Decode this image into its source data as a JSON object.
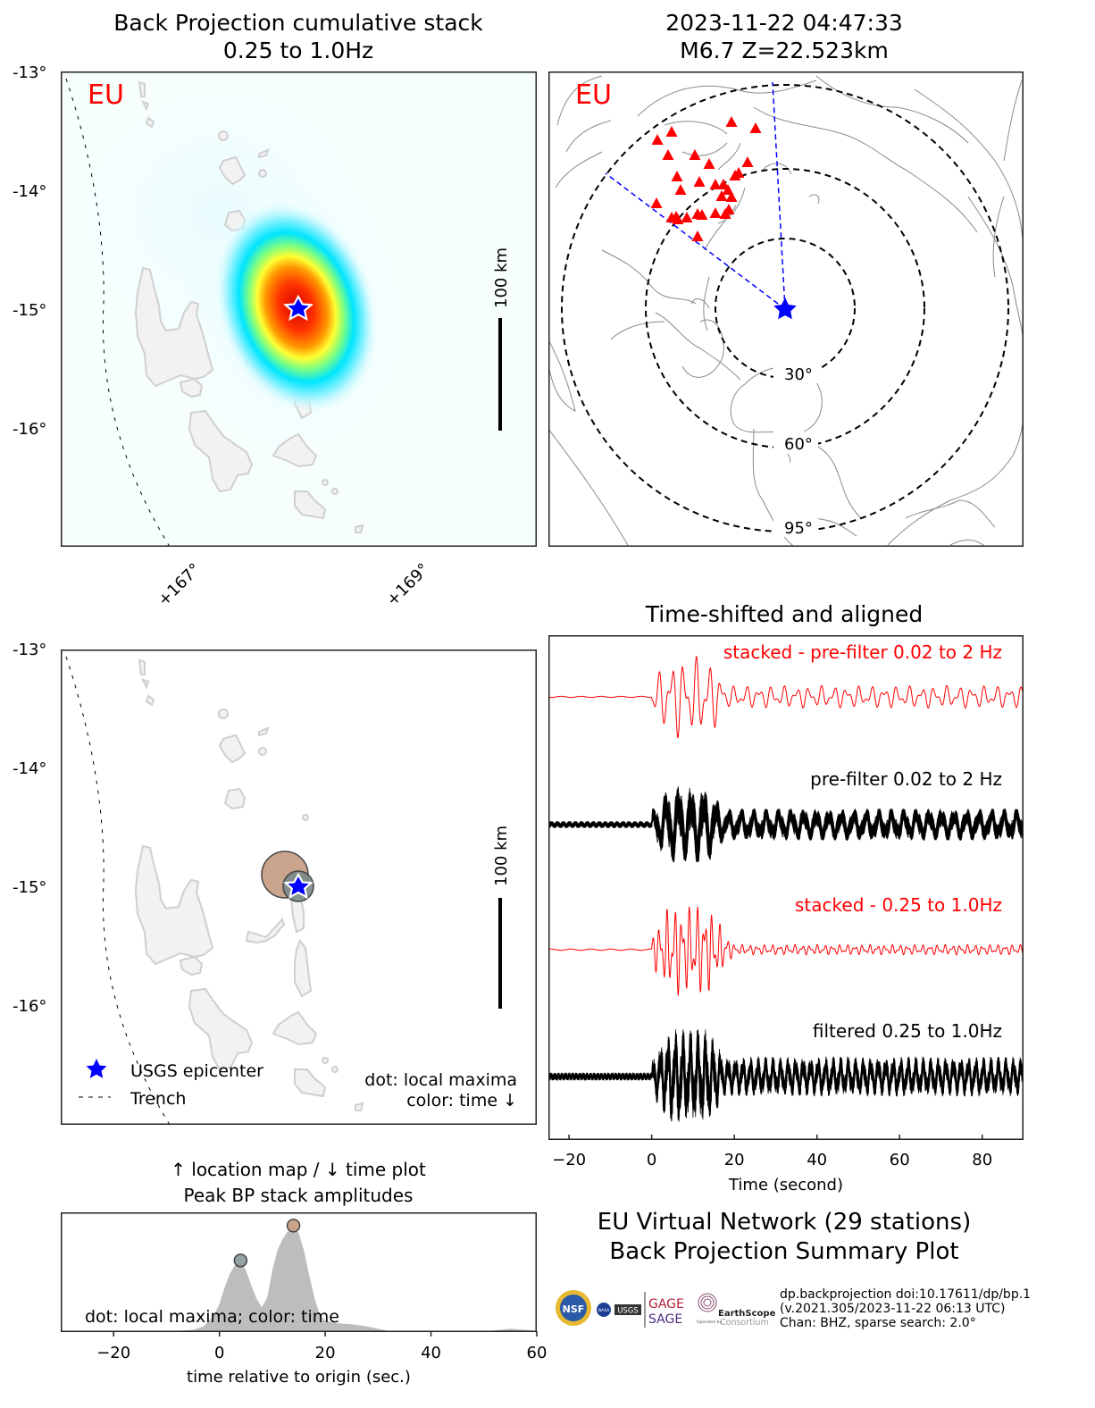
{
  "summary": {
    "title_line1": "EU Virtual Network (29 stations)",
    "title_line2": "Back Projection Summary Plot",
    "meta_line1": "dp.backprojection doi:10.17611/dp/bp.1",
    "meta_line2": "(v.2021.305/2023-11-22 06:13 UTC)",
    "meta_line3": "Chan: BHZ, sparse search: 2.0°",
    "logos": [
      "NSF",
      "NASA",
      "USGS",
      "GAGE",
      "SAGE",
      "EarthScope Consortium"
    ],
    "logo_gage": "GAGE",
    "logo_sage": "SAGE",
    "logo_earthscope": "EarthScope",
    "logo_consortium": "Consortium",
    "logo_operated": "Operated by",
    "logo_usgs": "USGS",
    "logo_nasa": "NASA",
    "logo_nsf": "NSF"
  },
  "colors": {
    "network_label": "#ff0000",
    "epicenter": "#0000ff",
    "station": "#ff0000",
    "stack_trace": "#ff0000",
    "trace": "#000000",
    "island_fill": "#f2f2f2",
    "island_edge": "#d0d0d0",
    "early_maximum": "#8a9a9a",
    "late_maximum": "#c49a80",
    "peak_fill": "#bdbdbd"
  },
  "chart_data": [
    {
      "id": "bp-cumulative-stack",
      "type": "heatmap",
      "title_line1": "Back Projection cumulative stack",
      "title_line2": "0.25 to 1.0Hz",
      "network_label": "EU",
      "y_ticks": [
        "-13°",
        "-14°",
        "-15°",
        "-16°"
      ],
      "y_tick_values": [
        -13,
        -14,
        -15,
        -16
      ],
      "x_ticks": [
        "+167°",
        "+169°"
      ],
      "x_tick_values": [
        167,
        169
      ],
      "xlim": [
        165.9,
        170.05
      ],
      "ylim": [
        -16.95,
        -13.0
      ],
      "scale_bar_label": "100 km",
      "scale_bar_km": 100,
      "epicenter": {
        "lon": 168.0,
        "lat": -15.0
      },
      "peak": {
        "lon": 167.99,
        "lat": -14.97,
        "major_axis_deg": 0.6,
        "minor_axis_deg": 0.4,
        "orientation": "NNW-SSE"
      },
      "colormap": "jet (white at low)",
      "trench_label": "Trench"
    },
    {
      "id": "station-map",
      "type": "scatter",
      "title_line1": "2023-11-22 04:47:33",
      "title_line2": "M6.7 Z=22.523km",
      "network_label": "EU",
      "distance_rings_deg": [
        30,
        60,
        95
      ],
      "ring_labels": [
        "30°",
        "60°",
        "95°"
      ],
      "station_count": 29,
      "azimuth_bounds_deg": [
        -5,
        -55
      ],
      "stations_marker": "triangle"
    },
    {
      "id": "local-maxima-map",
      "type": "scatter",
      "y_ticks": [
        "-13°",
        "-14°",
        "-15°",
        "-16°"
      ],
      "y_tick_values": [
        -13,
        -14,
        -15,
        -16
      ],
      "scale_bar_label": "100 km",
      "legend": [
        {
          "label": "USGS epicenter",
          "marker": "star",
          "color": "#0000ff"
        },
        {
          "label": "Trench",
          "marker": "dashed-line",
          "color": "#000000"
        }
      ],
      "legend_position": "lower-left",
      "note_line1": "dot: local maxima",
      "note_line2": "color: time ↓",
      "maxima": [
        {
          "time_s": 4,
          "lon": 168.0,
          "lat": -15.0,
          "relative_size": 0.5,
          "color": "#8a9a9a"
        },
        {
          "time_s": 14,
          "lon": 167.9,
          "lat": -14.9,
          "relative_size": 1.0,
          "color": "#c49a80"
        }
      ],
      "epicenter": {
        "lon": 168.0,
        "lat": -15.0
      }
    },
    {
      "id": "aligned-traces",
      "type": "line",
      "title": "Time-shifted and aligned",
      "xlabel": "Time (second)",
      "x_ticks": [
        "−20",
        "0",
        "20",
        "40",
        "60",
        "80"
      ],
      "x_tick_values": [
        -20,
        0,
        20,
        40,
        60,
        80
      ],
      "xlim": [
        -25,
        90
      ],
      "series": [
        {
          "name": "stacked - pre-filter 0.02 to 2 Hz",
          "color": "#ff0000",
          "kind": "stack"
        },
        {
          "name": "pre-filter 0.02 to 2 Hz",
          "color": "#000000",
          "kind": "traces",
          "count": 29
        },
        {
          "name": "stacked - 0.25 to 1.0Hz",
          "color": "#ff0000",
          "kind": "stack"
        },
        {
          "name": "filtered 0.25 to 1.0Hz",
          "color": "#000000",
          "kind": "traces",
          "count": 29
        }
      ],
      "onset_s": 0
    },
    {
      "id": "peak-bp-amplitudes",
      "type": "area",
      "title_line1": "↑ location map / ↓ time plot",
      "title_line2": "Peak BP stack amplitudes",
      "xlabel": "time relative to origin (sec.)",
      "x_ticks": [
        "−20",
        "0",
        "20",
        "40",
        "60"
      ],
      "x_tick_values": [
        -20,
        0,
        20,
        40,
        60
      ],
      "xlim": [
        -30,
        60
      ],
      "ylim": [
        0,
        1.0
      ],
      "note": "dot: local maxima; color: time",
      "x": [
        -30,
        -10,
        -5,
        -3,
        -1,
        0,
        1,
        2,
        3,
        4,
        5,
        6,
        7,
        8,
        9,
        10,
        11,
        12,
        13,
        14,
        15,
        16,
        17,
        18,
        19,
        20,
        22,
        25,
        28,
        30,
        32,
        35,
        40,
        45,
        50,
        55,
        58,
        60
      ],
      "values": [
        0,
        0.005,
        0.02,
        0.05,
        0.15,
        0.25,
        0.4,
        0.52,
        0.6,
        0.62,
        0.55,
        0.42,
        0.3,
        0.22,
        0.3,
        0.55,
        0.73,
        0.83,
        0.9,
        0.93,
        0.88,
        0.72,
        0.5,
        0.3,
        0.15,
        0.1,
        0.08,
        0.07,
        0.05,
        0.03,
        0.01,
        0.005,
        0.003,
        0.003,
        0.005,
        0.03,
        0.02,
        0.01
      ],
      "maxima": [
        {
          "time_s": 4,
          "value": 0.62,
          "color": "#8a9a9a"
        },
        {
          "time_s": 14,
          "value": 0.93,
          "color": "#c49a80"
        }
      ]
    }
  ]
}
